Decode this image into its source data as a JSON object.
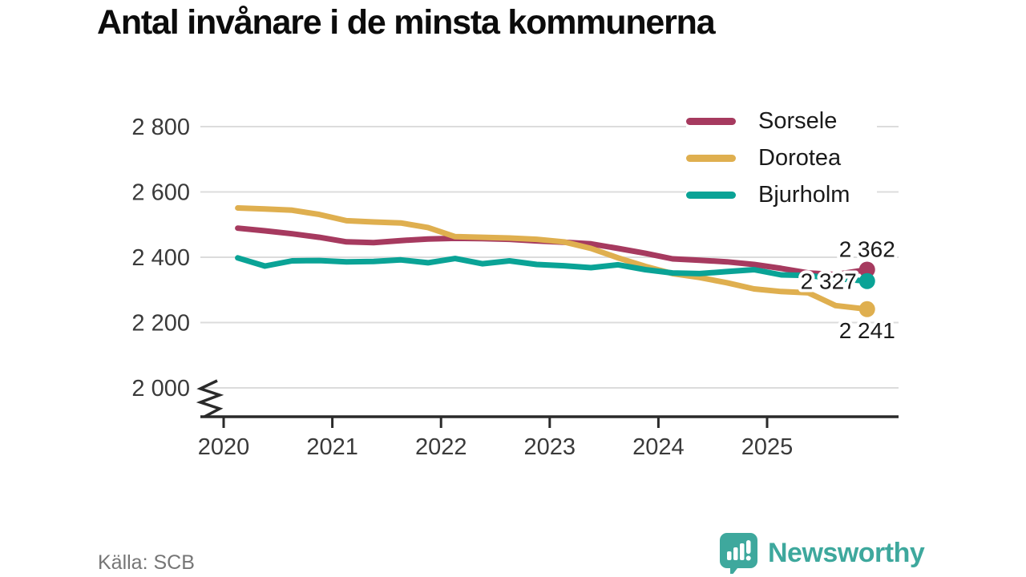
{
  "title": "Antal invånare i de minsta kommunerna",
  "source": "Källa: SCB",
  "branding": {
    "name": "Newsworthy",
    "color": "#3ea89d",
    "icon": "newsworthy-speech-bubble-chart-icon"
  },
  "colors": {
    "grid": "#dcdcdc",
    "axis": "#2a2a2a",
    "tick_text": "#3a3a3a",
    "end_label_text": "#1a1a1a",
    "sorsele": "#a63a5f",
    "dorotea": "#dfaf4f",
    "bjurholm": "#0aa396"
  },
  "chart_data": {
    "type": "line",
    "title": "Antal invånare i de minsta kommunerna",
    "xlabel": "",
    "ylabel": "",
    "grid": "horizontal",
    "legend_position": "top-right",
    "y_axis": {
      "tick_values": [
        2000,
        2200,
        2400,
        2600,
        2800
      ],
      "tick_labels": [
        "2 000",
        "2 200",
        "2 400",
        "2 600",
        "2 800"
      ],
      "axis_break_at_bottom": true
    },
    "x_axis": {
      "tick_values": [
        2020,
        2021,
        2022,
        2023,
        2024,
        2025
      ],
      "tick_labels": [
        "2020",
        "2021",
        "2022",
        "2023",
        "2024",
        "2025"
      ]
    },
    "x": [
      2020.13,
      2020.38,
      2020.63,
      2020.88,
      2021.13,
      2021.38,
      2021.63,
      2021.88,
      2022.13,
      2022.38,
      2022.63,
      2022.88,
      2023.13,
      2023.38,
      2023.63,
      2023.88,
      2024.13,
      2024.38,
      2024.63,
      2024.88,
      2025.13,
      2025.38,
      2025.63,
      2025.92
    ],
    "series": [
      {
        "name": "Sorsele",
        "color": "#a63a5f",
        "end_value": 2362,
        "end_label": "2 362",
        "label_position": "above",
        "values": [
          2489,
          2481,
          2472,
          2461,
          2447,
          2445,
          2451,
          2456,
          2458,
          2457,
          2455,
          2450,
          2446,
          2441,
          2427,
          2412,
          2395,
          2391,
          2386,
          2378,
          2366,
          2352,
          2347,
          2362
        ]
      },
      {
        "name": "Dorotea",
        "color": "#dfaf4f",
        "end_value": 2241,
        "end_label": "2 241",
        "label_position": "below",
        "values": [
          2551,
          2548,
          2544,
          2531,
          2512,
          2508,
          2505,
          2491,
          2463,
          2461,
          2459,
          2455,
          2447,
          2427,
          2398,
          2372,
          2350,
          2338,
          2322,
          2303,
          2295,
          2291,
          2252,
          2241
        ]
      },
      {
        "name": "Bjurholm",
        "color": "#0aa396",
        "end_value": 2327,
        "end_label": "2 327",
        "label_position": "left",
        "values": [
          2398,
          2373,
          2389,
          2390,
          2386,
          2387,
          2392,
          2383,
          2396,
          2380,
          2389,
          2378,
          2374,
          2368,
          2377,
          2362,
          2352,
          2350,
          2356,
          2362,
          2346,
          2344,
          2335,
          2327
        ]
      }
    ],
    "legend": [
      "Sorsele",
      "Dorotea",
      "Bjurholm"
    ]
  }
}
